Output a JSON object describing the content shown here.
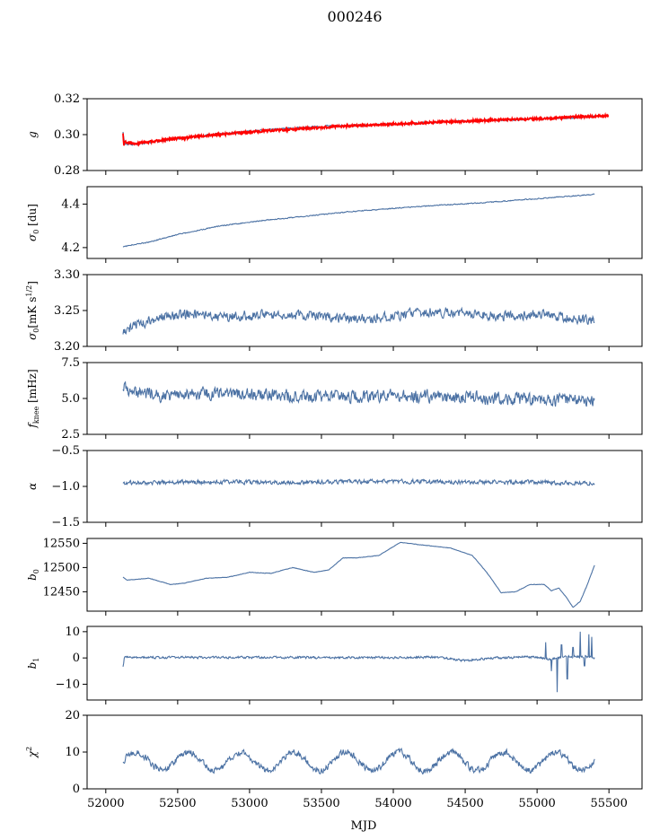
{
  "chart_data": {
    "type": "line",
    "title": "000246",
    "xlabel": "MJD",
    "xlim": [
      51870,
      55730
    ],
    "xticks": [
      52000,
      52500,
      53000,
      53500,
      54000,
      54500,
      55000,
      55500
    ],
    "line_color": "#4c72a4",
    "fit_color": "#ff0000",
    "panels": [
      {
        "id": "g",
        "ylabel_html": "<tspan font-style=\"italic\">g</tspan>",
        "ylim": [
          0.28,
          0.32
        ],
        "yticks": [
          0.28,
          0.3,
          0.32
        ],
        "ytick_labels": [
          "0.28",
          "0.30",
          "0.32"
        ],
        "x": [
          52120,
          52130,
          52200,
          52300,
          52500,
          52700,
          52900,
          53100,
          53300,
          53500,
          53700,
          53900,
          54100,
          54300,
          54500,
          54700,
          54900,
          55100,
          55300,
          55400
        ],
        "values": [
          0.302,
          0.295,
          0.2945,
          0.2955,
          0.298,
          0.2995,
          0.301,
          0.3025,
          0.3035,
          0.3045,
          0.305,
          0.3055,
          0.306,
          0.307,
          0.3075,
          0.308,
          0.3085,
          0.309,
          0.3095,
          0.31
        ],
        "noise": 0.0008,
        "fit": true,
        "fit_x": [
          52120,
          52125,
          52130,
          52200,
          52400,
          52700,
          53000,
          53300,
          53600,
          53900,
          54200,
          54500,
          54800,
          55100,
          55300,
          55500
        ],
        "fit_values": [
          0.301,
          0.294,
          0.296,
          0.295,
          0.297,
          0.2995,
          0.3015,
          0.303,
          0.3045,
          0.3055,
          0.3065,
          0.3075,
          0.3085,
          0.309,
          0.31,
          0.3105
        ]
      },
      {
        "id": "sigma_du",
        "ylabel_html": "<tspan font-style=\"italic\">σ</tspan><tspan font-size=\"8\" dy=\"3\">0</tspan><tspan dy=\"-3\"> [du]</tspan>",
        "ylim": [
          4.15,
          4.48
        ],
        "yticks": [
          4.2,
          4.4
        ],
        "ytick_labels": [
          "4.2",
          "4.4"
        ],
        "x": [
          52120,
          52300,
          52500,
          52800,
          53100,
          53400,
          53700,
          54000,
          54300,
          54600,
          54900,
          55200,
          55400
        ],
        "values": [
          4.205,
          4.225,
          4.26,
          4.3,
          4.325,
          4.345,
          4.365,
          4.38,
          4.395,
          4.405,
          4.42,
          4.435,
          4.445
        ],
        "noise": 0.003
      },
      {
        "id": "sigma_mk",
        "ylabel_html": "<tspan font-style=\"italic\">σ</tspan><tspan font-size=\"8\" dy=\"3\">0</tspan><tspan dy=\"-3\">[mK s</tspan><tspan font-size=\"8\" dy=\"-5\">1/2</tspan><tspan dy=\"5\">]</tspan>",
        "ylim": [
          3.2,
          3.3
        ],
        "yticks": [
          3.2,
          3.25,
          3.3
        ],
        "ytick_labels": [
          "3.20",
          "3.25",
          "3.30"
        ],
        "x": [
          52120,
          52200,
          52400,
          52600,
          52800,
          53000,
          53200,
          53400,
          53600,
          53800,
          54000,
          54200,
          54400,
          54600,
          54800,
          55000,
          55200,
          55400
        ],
        "values": [
          3.222,
          3.228,
          3.242,
          3.245,
          3.24,
          3.244,
          3.243,
          3.244,
          3.24,
          3.238,
          3.241,
          3.248,
          3.247,
          3.244,
          3.242,
          3.245,
          3.24,
          3.236
        ],
        "noise": 0.009
      },
      {
        "id": "fknee",
        "ylabel_html": "<tspan font-style=\"italic\">f</tspan><tspan font-size=\"8\" dy=\"3\">knee</tspan><tspan dy=\"-3\"> [mHz]</tspan>",
        "ylim": [
          2.5,
          7.5
        ],
        "yticks": [
          2.5,
          5.0,
          7.5
        ],
        "ytick_labels": [
          "2.5",
          "5.0",
          "7.5"
        ],
        "x": [
          52120,
          52200,
          52400,
          52800,
          53200,
          53600,
          54000,
          54400,
          54800,
          55200,
          55400
        ],
        "values": [
          5.7,
          5.5,
          5.2,
          5.3,
          5.2,
          5.1,
          5.2,
          5.1,
          5.0,
          4.9,
          4.8
        ],
        "noise": 0.6
      },
      {
        "id": "alpha",
        "ylabel_html": "<tspan font-style=\"italic\">α</tspan>",
        "ylim": [
          -1.5,
          -0.5
        ],
        "yticks": [
          -1.5,
          -1.0,
          -0.5
        ],
        "ytick_labels": [
          "−1.5",
          "−1.0",
          "−0.5"
        ],
        "x": [
          52120,
          52500,
          53000,
          53500,
          54000,
          54500,
          55000,
          55400
        ],
        "values": [
          -0.95,
          -0.94,
          -0.94,
          -0.94,
          -0.93,
          -0.94,
          -0.94,
          -0.96
        ],
        "noise": 0.04
      },
      {
        "id": "b0",
        "ylabel_html": "<tspan font-style=\"italic\">b</tspan><tspan font-size=\"8\" dy=\"3\">0</tspan>",
        "ylim": [
          12410,
          12560
        ],
        "yticks": [
          12450,
          12500,
          12550
        ],
        "ytick_labels": [
          "12450",
          "12500",
          "12550"
        ],
        "x": [
          52120,
          52150,
          52300,
          52450,
          52550,
          52700,
          52850,
          53000,
          53150,
          53300,
          53450,
          53550,
          53650,
          53750,
          53900,
          54050,
          54100,
          54250,
          54400,
          54550,
          54650,
          54750,
          54850,
          54950,
          55050,
          55100,
          55150,
          55200,
          55250,
          55300,
          55350,
          55400
        ],
        "values": [
          12480,
          12474,
          12478,
          12465,
          12468,
          12478,
          12480,
          12490,
          12488,
          12500,
          12490,
          12495,
          12520,
          12520,
          12525,
          12552,
          12550,
          12545,
          12540,
          12525,
          12490,
          12448,
          12450,
          12465,
          12465,
          12452,
          12458,
          12440,
          12418,
          12430,
          12465,
          12505
        ],
        "noise": 0.6
      },
      {
        "id": "b1",
        "ylabel_html": "<tspan font-style=\"italic\">b</tspan><tspan font-size=\"8\" dy=\"3\">1</tspan>",
        "ylim": [
          -16,
          12
        ],
        "yticks": [
          -10,
          0,
          10
        ],
        "ytick_labels": [
          "−10",
          "0",
          "10"
        ],
        "x": [
          52120,
          52130,
          52300,
          52800,
          53300,
          53800,
          54300,
          54500,
          54700,
          54900,
          55000,
          55100,
          55200,
          55300,
          55400
        ],
        "values": [
          -3,
          0.3,
          0.2,
          0.2,
          0.2,
          0.1,
          0.3,
          -1,
          0,
          0.3,
          0.2,
          -0.5,
          0.5,
          0.5,
          0.2
        ],
        "noise": 0.6,
        "spikes": [
          [
            55060,
            6
          ],
          [
            55100,
            -5
          ],
          [
            55140,
            -13
          ],
          [
            55170,
            5
          ],
          [
            55210,
            -8
          ],
          [
            55250,
            4
          ],
          [
            55300,
            10
          ],
          [
            55330,
            -3
          ],
          [
            55360,
            9
          ],
          [
            55380,
            8
          ]
        ]
      },
      {
        "id": "chi2",
        "ylabel_html": "<tspan font-style=\"italic\">χ</tspan><tspan font-size=\"8\" dy=\"-5\">2</tspan>",
        "ylim": [
          0,
          20
        ],
        "yticks": [
          0,
          10,
          20
        ],
        "ytick_labels": [
          "0",
          "10",
          "20"
        ],
        "x": [
          52120,
          55400
        ],
        "values": [
          7.5,
          7.5
        ],
        "noise": 1.2,
        "oscillation": {
          "amplitude": 2.5,
          "period": 365
        }
      }
    ]
  }
}
